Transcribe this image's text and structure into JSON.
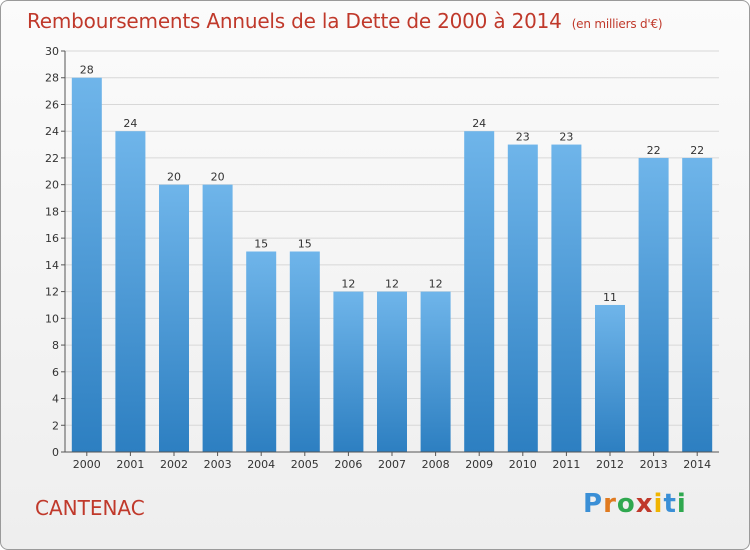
{
  "title": "Remboursements Annuels de la Dette de 2000 à 2014",
  "subtitle": "(en milliers d'€)",
  "commune": "CANTENAC",
  "logo": {
    "text": "Proxiti",
    "letters": [
      "P",
      "r",
      "o",
      "x",
      "i",
      "t",
      "i"
    ],
    "colors": [
      "#3a8fd6",
      "#e07a1f",
      "#2fa84f",
      "#c0392b",
      "#f0b400",
      "#3a8fd6",
      "#2fa84f"
    ]
  },
  "colors": {
    "bar_top": "#6fb5ea",
    "bar_bottom": "#2d7fc1",
    "title": "#c0392b",
    "grid": "#d8d8d8"
  },
  "chart_data": {
    "type": "bar",
    "categories": [
      "2000",
      "2001",
      "2002",
      "2003",
      "2004",
      "2005",
      "2006",
      "2007",
      "2008",
      "2009",
      "2010",
      "2011",
      "2012",
      "2013",
      "2014"
    ],
    "values": [
      28,
      24,
      20,
      20,
      15,
      15,
      12,
      12,
      12,
      24,
      23,
      23,
      11,
      22,
      22
    ],
    "yticks": [
      0,
      2,
      4,
      6,
      8,
      10,
      12,
      14,
      16,
      18,
      20,
      22,
      24,
      26,
      28,
      30
    ],
    "ylim": [
      0,
      30
    ],
    "grid": true,
    "xlabel": "",
    "ylabel": ""
  }
}
